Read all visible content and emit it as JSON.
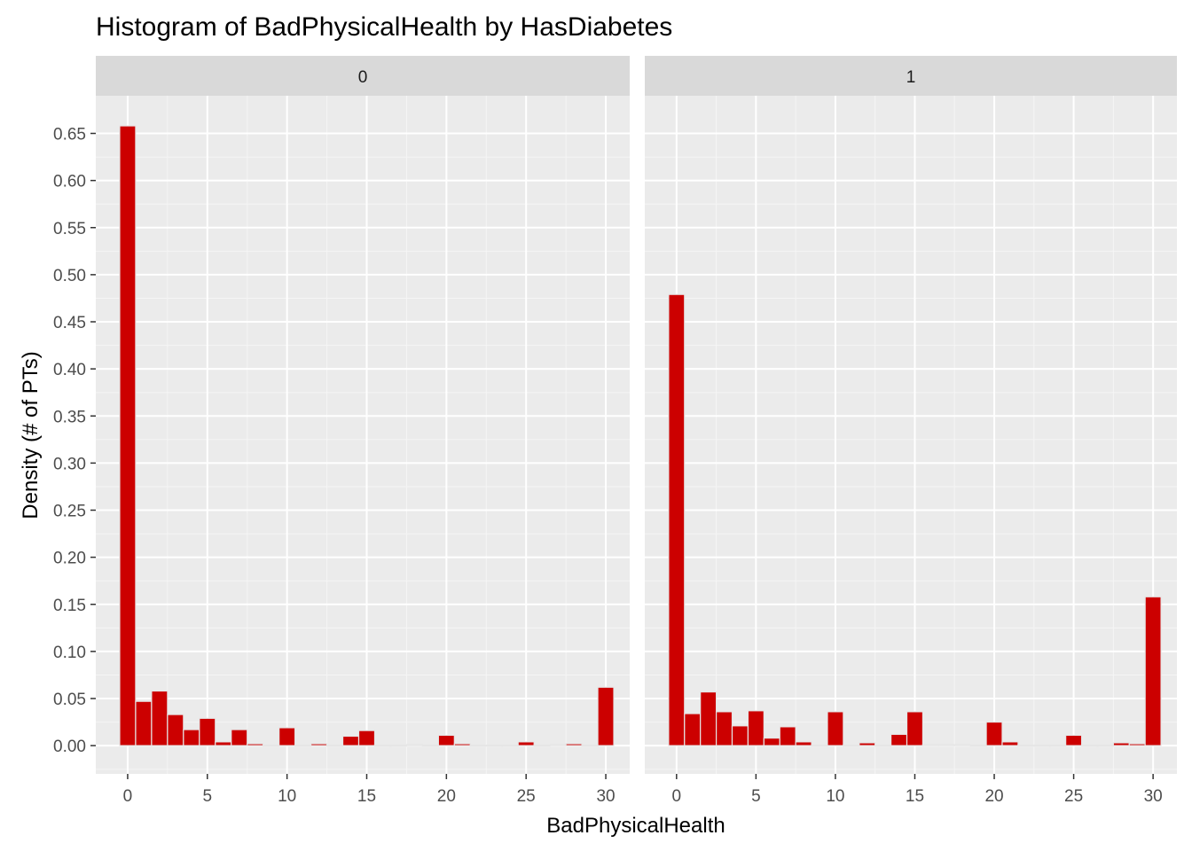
{
  "chart_data": {
    "type": "bar",
    "title": "Histogram of BadPhysicalHealth by HasDiabetes",
    "xlabel": "BadPhysicalHealth",
    "ylabel": "Density (# of PTs)",
    "xlim": [
      -2,
      31.5
    ],
    "ylim": [
      -0.03,
      0.69
    ],
    "x_ticks": [
      0,
      5,
      10,
      15,
      20,
      25,
      30
    ],
    "x_tick_labels": [
      "0",
      "5",
      "10",
      "15",
      "20",
      "25",
      "30"
    ],
    "y_ticks": [
      0,
      0.05,
      0.1,
      0.15,
      0.2,
      0.25,
      0.3,
      0.35,
      0.4,
      0.45,
      0.5,
      0.55,
      0.6,
      0.65
    ],
    "y_tick_labels": [
      "0.00",
      "0.05",
      "0.10",
      "0.15",
      "0.20",
      "0.25",
      "0.30",
      "0.35",
      "0.40",
      "0.45",
      "0.50",
      "0.55",
      "0.60",
      "0.65"
    ],
    "grid": true,
    "bar_color": "#CC0000",
    "bar_outline": "#E6E6E6",
    "bin_width": 1,
    "x": [
      0,
      1,
      2,
      3,
      4,
      5,
      6,
      7,
      8,
      9,
      10,
      11,
      12,
      13,
      14,
      15,
      16,
      17,
      18,
      19,
      20,
      21,
      22,
      23,
      24,
      25,
      26,
      27,
      28,
      29,
      30
    ],
    "panels": [
      {
        "label": "0",
        "values": [
          0.658,
          0.047,
          0.058,
          0.033,
          0.017,
          0.029,
          0.004,
          0.017,
          0.002,
          0.0005,
          0.019,
          0.0005,
          0.002,
          0.0005,
          0.01,
          0.016,
          0.0005,
          0.0005,
          0.001,
          0.0005,
          0.011,
          0.002,
          0.0005,
          0.0005,
          0.0005,
          0.004,
          0.0005,
          0.001,
          0.002,
          0.0005,
          0.062
        ]
      },
      {
        "label": "1",
        "values": [
          0.479,
          0.034,
          0.057,
          0.036,
          0.021,
          0.037,
          0.008,
          0.02,
          0.004,
          0.0005,
          0.036,
          0.0005,
          0.003,
          0.0005,
          0.012,
          0.036,
          0.001,
          0.001,
          0.001,
          0.0005,
          0.025,
          0.004,
          0.0005,
          0.0005,
          0.0005,
          0.011,
          0.0005,
          0.0005,
          0.003,
          0.002,
          0.158
        ]
      }
    ]
  }
}
